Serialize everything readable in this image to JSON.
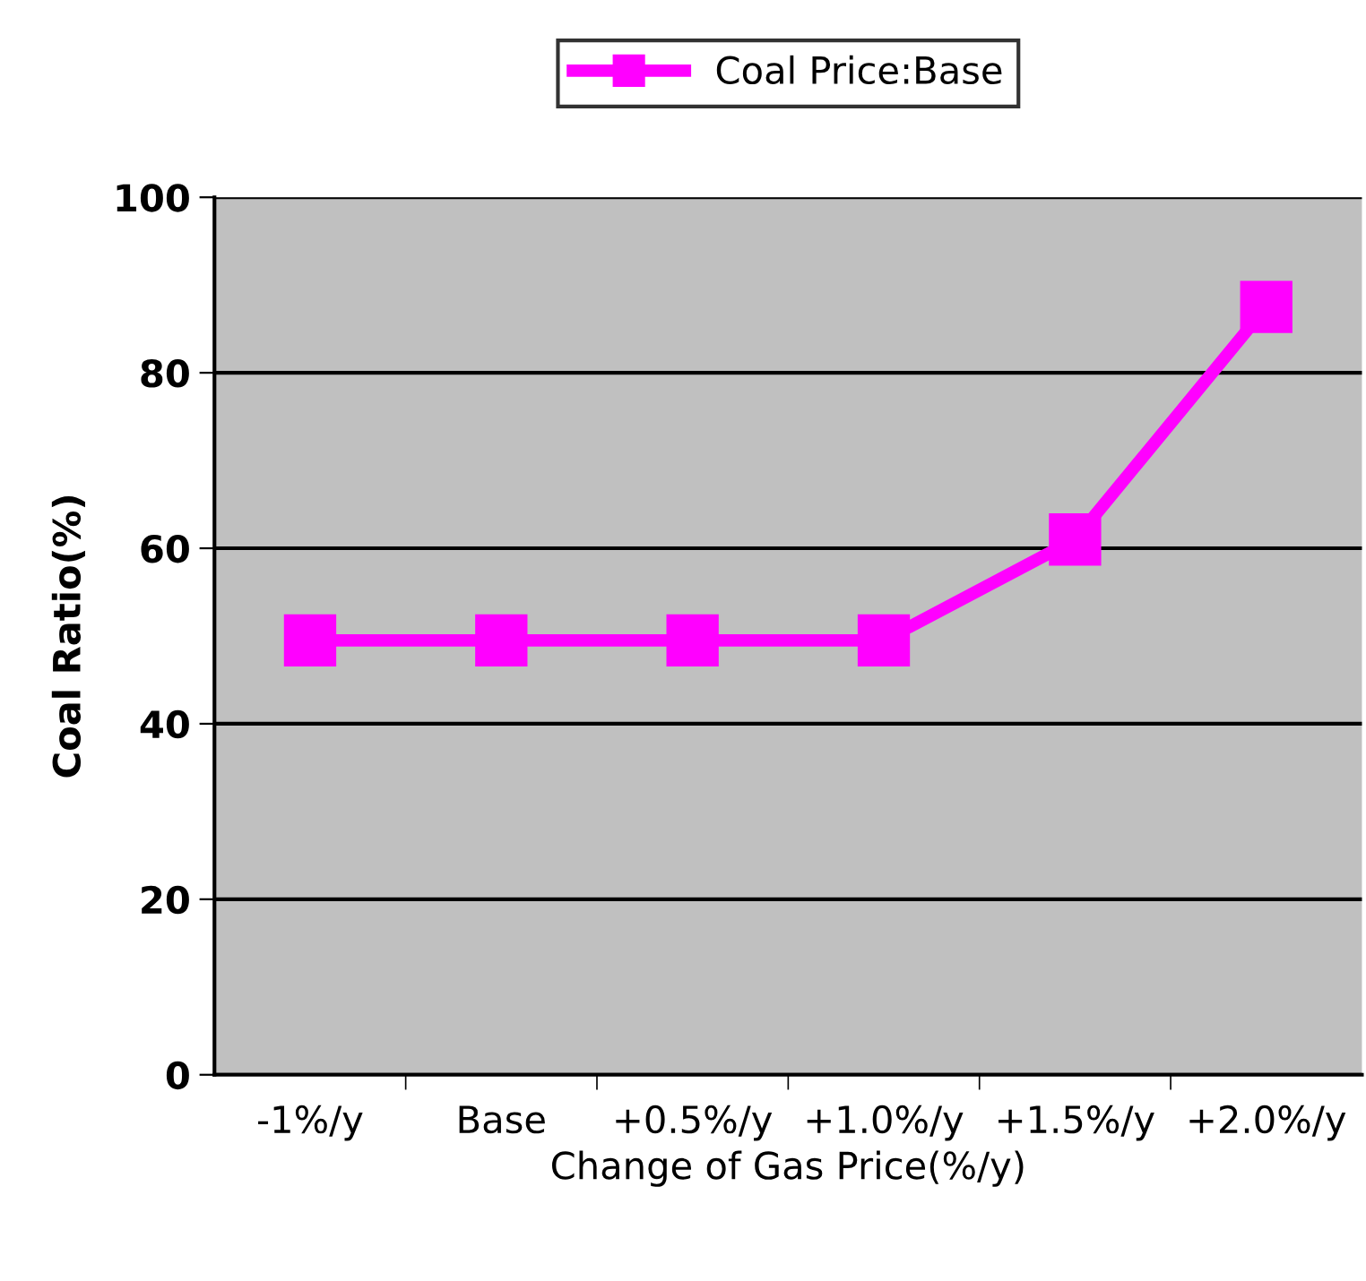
{
  "chart_data": {
    "type": "line",
    "xlabel": "Change of Gas Price(%/y)",
    "ylabel": "Coal Ratio(%)",
    "categories": [
      "-1%/y",
      "Base",
      "+0.5%/y",
      "+1.0%/y",
      "+1.5%/y",
      "+2.0%/y"
    ],
    "series": [
      {
        "name": "Coal Price:Base",
        "color": "#ff00ff",
        "values": [
          49.5,
          49.5,
          49.5,
          49.5,
          61,
          87.5
        ]
      }
    ],
    "ylim": [
      0,
      100
    ],
    "yticks": [
      0,
      20,
      40,
      60,
      80,
      100
    ],
    "grid": "y",
    "legend": "top",
    "marker": "square",
    "line_style": "solid"
  }
}
